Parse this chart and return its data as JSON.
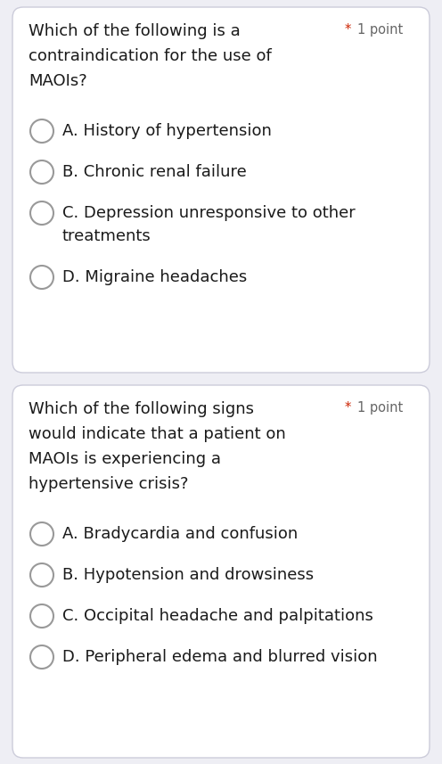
{
  "bg_color": "#eeeef4",
  "card_color": "#ffffff",
  "card_border_color": "#ccccda",
  "text_color": "#1a1a1a",
  "asterisk_color": "#cc2200",
  "point_text_color": "#666666",
  "circle_edge_color": "#999999",
  "questions": [
    {
      "question_lines": [
        "Which of the following is a",
        "contraindication for the use of",
        "MAOIs?"
      ],
      "point_label": "1 point",
      "options": [
        [
          "A. History of hypertension"
        ],
        [
          "B. Chronic renal failure"
        ],
        [
          "C. Depression unresponsive to other",
          "treatments"
        ],
        [
          "D. Migraine headaches"
        ]
      ]
    },
    {
      "question_lines": [
        "Which of the following signs",
        "would indicate that a patient on",
        "MAOIs is experiencing a",
        "hypertensive crisis?"
      ],
      "point_label": "1 point",
      "options": [
        [
          "A. Bradycardia and confusion"
        ],
        [
          "B. Hypotension and drowsiness"
        ],
        [
          "C. Occipital headache and palpitations"
        ],
        [
          "D. Peripheral edema and blurred vision"
        ]
      ]
    }
  ],
  "font_size_question": 13.0,
  "font_size_option": 13.0,
  "font_size_point": 10.5,
  "fig_width": 4.96,
  "fig_height": 8.57
}
